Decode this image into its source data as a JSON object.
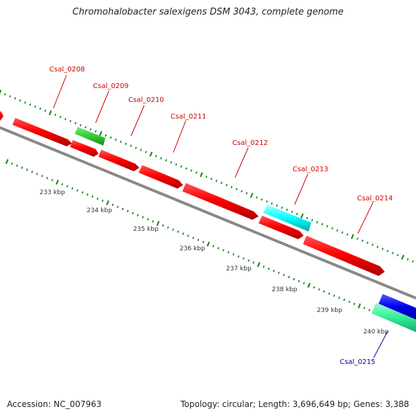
{
  "title": "Chromohalobacter salexigens DSM 3043, complete genome",
  "footer": {
    "accession": "Accession: NC_007963",
    "summary": "Topology: circular; Length: 3,696,649 bp; Genes: 3,388"
  },
  "colors": {
    "backbone": "#888888",
    "tick": "#228822",
    "forward_gene": "#ff0000",
    "gene_green": "#33cc33",
    "gene_cyan": "#00ffff",
    "gene_blue": "#0000ee",
    "gene_seagreen": "#33ee99",
    "label_red": "#cc0000",
    "label_blue": "#000099"
  },
  "gene_labels": [
    {
      "text": "Csal_0208",
      "color": "red"
    },
    {
      "text": "Csal_0209",
      "color": "red"
    },
    {
      "text": "Csal_0210",
      "color": "red"
    },
    {
      "text": "Csal_0211",
      "color": "red"
    },
    {
      "text": "Csal_0212",
      "color": "red"
    },
    {
      "text": "Csal_0213",
      "color": "red"
    },
    {
      "text": "Csal_0214",
      "color": "red"
    },
    {
      "text": "Csal_0215",
      "color": "blue"
    }
  ],
  "scale_labels": [
    "233 kbp",
    "234 kbp",
    "235 kbp",
    "236 kbp",
    "237 kbp",
    "238 kbp",
    "239 kbp",
    "240 kbp"
  ]
}
